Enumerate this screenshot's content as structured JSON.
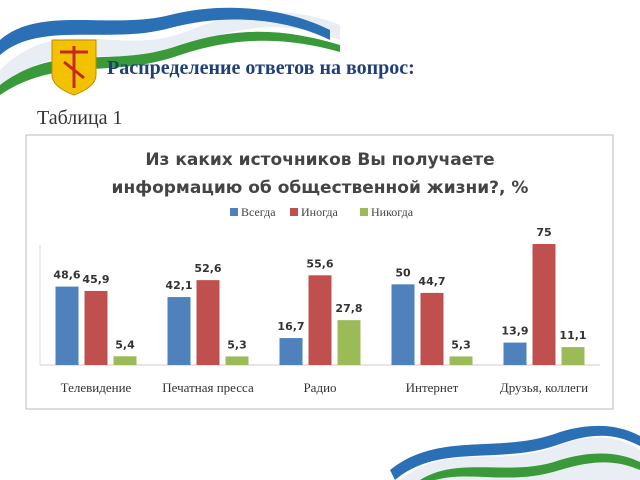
{
  "header": {
    "title": "Распределение ответов на вопрос:",
    "subtitle": "Таблица 1"
  },
  "chart_data": {
    "type": "bar",
    "title": [
      "Из каких источников Вы получаете",
      "информацию об общественной жизни?, %"
    ],
    "categories": [
      "Телевидение",
      "Печатная пресса",
      "Радио",
      "Интернет",
      "Друзья, коллеги"
    ],
    "series": [
      {
        "name": "Всегда",
        "color": "#4f81bd",
        "values": [
          48.6,
          42.1,
          16.7,
          50,
          13.9
        ],
        "value_labels": [
          "48,6",
          "42,1",
          "16,7",
          "50",
          "13,9"
        ]
      },
      {
        "name": "Иногда",
        "color": "#c0504d",
        "values": [
          45.9,
          52.6,
          55.6,
          44.7,
          75
        ],
        "value_labels": [
          "45,9",
          "52,6",
          "55,6",
          "44,7",
          "75"
        ]
      },
      {
        "name": "Никогда",
        "color": "#9bbb59",
        "values": [
          5.4,
          5.3,
          27.8,
          5.3,
          11.1
        ],
        "value_labels": [
          "5,4",
          "5,3",
          "27,8",
          "5,3",
          "11,1"
        ]
      }
    ],
    "legend": "top"
  }
}
